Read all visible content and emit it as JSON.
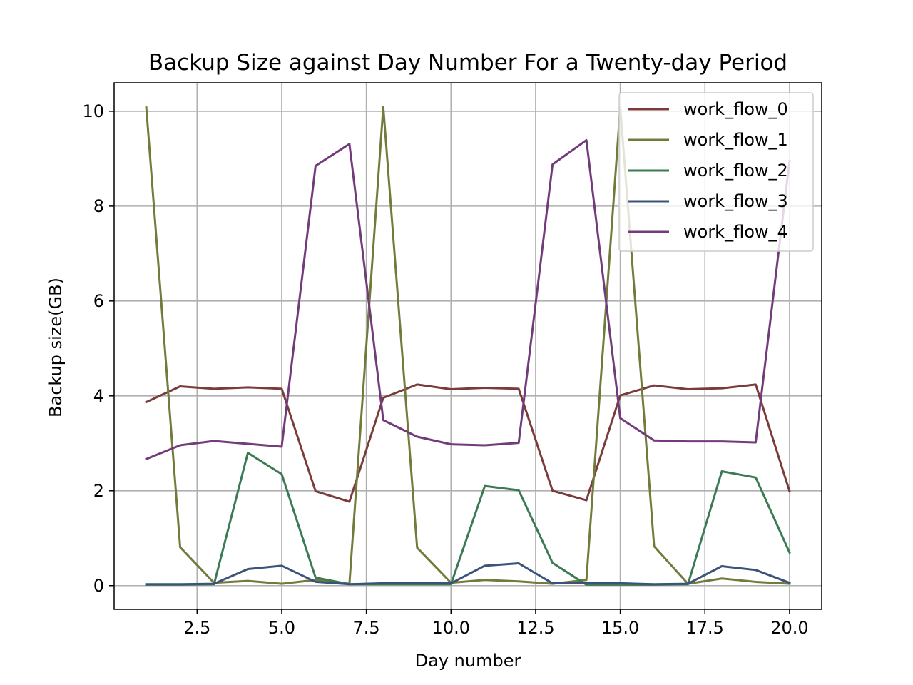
{
  "chart_data": {
    "type": "line",
    "title": "Backup Size against Day Number For a Twenty-day Period",
    "xlabel": "Day number",
    "ylabel": "Backup size(GB)",
    "xlim": [
      0.05,
      20.95
    ],
    "ylim": [
      -0.5,
      10.6
    ],
    "xticks": [
      2.5,
      5.0,
      7.5,
      10.0,
      12.5,
      15.0,
      17.5,
      20.0
    ],
    "xtick_labels": [
      "2.5",
      "5.0",
      "7.5",
      "10.0",
      "12.5",
      "15.0",
      "17.5",
      "20.0"
    ],
    "yticks": [
      0,
      2,
      4,
      6,
      8,
      10
    ],
    "ytick_labels": [
      "0",
      "2",
      "4",
      "6",
      "8",
      "10"
    ],
    "grid": true,
    "legend_position": "top-right",
    "x": [
      1,
      2,
      3,
      4,
      5,
      6,
      7,
      8,
      9,
      10,
      11,
      12,
      13,
      14,
      15,
      16,
      17,
      18,
      19,
      20
    ],
    "series": [
      {
        "name": "work_flow_0",
        "color": "#7b3b3b",
        "values": [
          3.87,
          4.2,
          4.15,
          4.18,
          4.15,
          1.99,
          1.77,
          3.96,
          4.24,
          4.14,
          4.17,
          4.15,
          2.0,
          1.8,
          4.01,
          4.22,
          4.14,
          4.16,
          4.24,
          1.99
        ]
      },
      {
        "name": "work_flow_1",
        "color": "#727b3b",
        "values": [
          10.08,
          0.81,
          0.06,
          0.1,
          0.04,
          0.12,
          0.04,
          10.09,
          0.8,
          0.06,
          0.12,
          0.09,
          0.04,
          0.12,
          10.08,
          0.83,
          0.04,
          0.15,
          0.08,
          0.04
        ]
      },
      {
        "name": "work_flow_2",
        "color": "#3b7b53",
        "values": [
          0.02,
          0.02,
          0.03,
          2.8,
          2.35,
          0.17,
          0.03,
          0.03,
          0.03,
          0.03,
          2.1,
          2.01,
          0.48,
          0.02,
          0.02,
          0.02,
          0.03,
          2.41,
          2.28,
          0.7
        ]
      },
      {
        "name": "work_flow_3",
        "color": "#3b537b",
        "values": [
          0.03,
          0.03,
          0.04,
          0.35,
          0.42,
          0.08,
          0.03,
          0.05,
          0.05,
          0.05,
          0.42,
          0.47,
          0.05,
          0.05,
          0.05,
          0.03,
          0.04,
          0.41,
          0.33,
          0.06
        ]
      },
      {
        "name": "work_flow_4",
        "color": "#733b7b",
        "values": [
          2.67,
          2.96,
          3.05,
          2.99,
          2.93,
          8.85,
          9.31,
          3.49,
          3.14,
          2.98,
          2.96,
          3.01,
          8.88,
          9.39,
          3.53,
          3.06,
          3.04,
          3.04,
          3.02,
          8.95
        ]
      }
    ]
  }
}
